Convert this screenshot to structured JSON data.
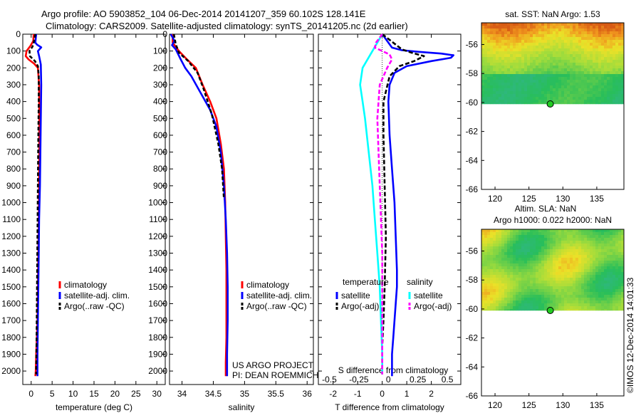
{
  "header": {
    "line1": "Argo profile: AO 5903852_104 06-Dec-2014 20141207_359 60.102S 128.141E",
    "line2": "Climatology: CARS2009. Satellite-adjusted climatology: synTS_20141205.nc (2d earlier)"
  },
  "side_stamp": "©IMOS 12-Dec-2014 14:01:33",
  "project_note": [
    "US ARGO PROJECT",
    "PI: DEAN ROEMMICH"
  ],
  "chart_data": [
    {
      "type": "line",
      "id": "temperature",
      "xlabel": "temperature (deg C)",
      "xlim": [
        -2,
        32
      ],
      "xticks": [
        0,
        5,
        10,
        15,
        20,
        25,
        30
      ],
      "ylim": [
        2080,
        0
      ],
      "yticks": [
        0,
        100,
        200,
        300,
        400,
        500,
        600,
        700,
        800,
        900,
        1000,
        1100,
        1200,
        1300,
        1400,
        1500,
        1600,
        1700,
        1800,
        1900,
        2000
      ],
      "legend": [
        "climatology",
        "satellite-adj. clim.",
        "Argo(..raw -QC)"
      ],
      "series": [
        {
          "name": "climatology",
          "color": "#ff0000",
          "dash": "",
          "x": [
            0.6,
            0.5,
            -0.2,
            -1.1,
            -1.3,
            -0.6,
            0.7,
            1.6,
            1.9,
            1.95,
            1.95,
            1.9,
            1.8,
            1.7,
            1.6,
            1.5,
            1.35,
            1.2,
            1.1,
            1.0
          ],
          "y": [
            0,
            40,
            70,
            100,
            130,
            150,
            175,
            200,
            300,
            500,
            700,
            900,
            1100,
            1300,
            1500,
            1700,
            1800,
            1900,
            2000,
            2030
          ]
        },
        {
          "name": "satellite-adj. clim.",
          "color": "#0000ff",
          "dash": "",
          "x": [
            1.2,
            1.0,
            1.4,
            2.4,
            1.6,
            1.9,
            2.3,
            2.4,
            2.3,
            2.2,
            2.1,
            1.9,
            1.8,
            1.7,
            1.6,
            1.5,
            1.5
          ],
          "y": [
            0,
            50,
            62,
            78,
            100,
            130,
            180,
            300,
            500,
            700,
            900,
            1100,
            1300,
            1500,
            1700,
            1900,
            2030
          ]
        },
        {
          "name": "Argo(..raw -QC)",
          "color": "#000000",
          "dash": "5,3",
          "x": [
            1.0,
            0.6,
            0.3,
            -0.4,
            -0.3,
            0.9,
            1.6,
            1.8,
            1.8,
            1.7,
            1.6,
            1.5,
            1.4,
            1.3,
            1.2,
            1.2
          ],
          "y": [
            0,
            50,
            75,
            100,
            130,
            160,
            190,
            250,
            400,
            600,
            900,
            1200,
            1500,
            1800,
            2000,
            2020
          ]
        }
      ]
    },
    {
      "type": "line",
      "id": "salinity",
      "xlabel": "salinity",
      "xlim": [
        33.8,
        36.1
      ],
      "xticks": [
        34,
        34.5,
        35,
        35.5,
        36
      ],
      "ylim": [
        2080,
        0
      ],
      "legend": [
        "climatology",
        "satellite-adj. clim.",
        "Argo(..raw -QC)"
      ],
      "series": [
        {
          "name": "climatology",
          "color": "#ff0000",
          "dash": "",
          "x": [
            33.85,
            33.85,
            33.95,
            34.08,
            34.22,
            34.33,
            34.45,
            34.55,
            34.62,
            34.67,
            34.69,
            34.7,
            34.71,
            34.71,
            34.71,
            34.7,
            34.7
          ],
          "y": [
            0,
            50,
            100,
            150,
            200,
            300,
            400,
            500,
            650,
            800,
            1000,
            1200,
            1400,
            1600,
            1800,
            1950,
            2030
          ]
        },
        {
          "name": "satellite-adj. clim.",
          "color": "#0000ff",
          "dash": "",
          "x": [
            33.82,
            33.88,
            33.84,
            33.9,
            33.98,
            34.05,
            34.15,
            34.3,
            34.45,
            34.55,
            34.62,
            34.67,
            34.7,
            34.72,
            34.73,
            34.73,
            34.72,
            34.72
          ],
          "y": [
            0,
            40,
            65,
            90,
            150,
            200,
            250,
            350,
            450,
            550,
            700,
            900,
            1100,
            1300,
            1500,
            1700,
            1900,
            2030
          ]
        },
        {
          "name": "Argo(..raw -QC)",
          "color": "#000000",
          "dash": "5,3",
          "x": [
            33.87,
            33.9,
            33.95,
            34.1,
            34.25,
            34.35,
            34.48,
            34.58,
            34.64,
            34.67
          ],
          "y": [
            0,
            60,
            110,
            160,
            230,
            330,
            480,
            650,
            800,
            980
          ]
        }
      ]
    },
    {
      "type": "line",
      "id": "difference",
      "xlabel": "T difference from climatology",
      "xlabel_top": "S difference from climatology",
      "xlim": [
        -2.6,
        3.2
      ],
      "xticks": [
        -2,
        -1,
        0,
        1,
        2
      ],
      "xticks_top": [
        "-0.5",
        "-0.25",
        "0",
        "0.25",
        "0.5"
      ],
      "ylim": [
        2080,
        0
      ],
      "legend_titles": [
        "temperature",
        "salinity"
      ],
      "legend": [
        "satellite",
        "Argo(-adj)",
        "satellite",
        "Argo(-adj)"
      ],
      "series": [
        {
          "name": "satellite",
          "group": "temperature",
          "color": "#0000ff",
          "dash": "",
          "x": [
            0,
            0.4,
            0.8,
            1.5,
            2.4,
            2.9,
            2.8,
            2.0,
            1.0,
            0.5,
            0.3,
            0.25,
            0.3,
            0.4,
            0.5,
            0.55,
            0.6,
            0.6,
            0.55,
            0.5,
            0.45,
            0.4,
            0.4
          ],
          "y": [
            0,
            80,
            95,
            105,
            115,
            125,
            140,
            160,
            190,
            230,
            300,
            400,
            600,
            800,
            1000,
            1200,
            1400,
            1500,
            1600,
            1700,
            1800,
            1900,
            2030
          ]
        },
        {
          "name": "Argo(-adj)",
          "group": "temperature",
          "color": "#000000",
          "dash": "6,3",
          "x": [
            0,
            0.8,
            1.2,
            1.7,
            1.3,
            0.7,
            0.3,
            0.05,
            0.05,
            0.1,
            0.15,
            0.1,
            0.05,
            0.0,
            0.0,
            0.0
          ],
          "y": [
            0,
            90,
            110,
            130,
            160,
            190,
            250,
            400,
            600,
            900,
            1200,
            1500,
            1700,
            1850,
            1950,
            2020
          ]
        },
        {
          "name": "satellite",
          "group": "salinity",
          "color": "#00ffff",
          "dash": "",
          "x": [
            0,
            -0.4,
            -0.8,
            -0.9,
            -0.8,
            -0.7,
            -0.55,
            -0.4,
            -0.3,
            -0.2,
            -0.1,
            -0.05,
            0.0,
            0.0
          ],
          "y": [
            0,
            100,
            200,
            300,
            400,
            500,
            700,
            900,
            1100,
            1300,
            1500,
            1700,
            1900,
            2020
          ]
        },
        {
          "name": "Argo(-adj)",
          "group": "salinity",
          "color": "#ff00ff",
          "dash": "6,3",
          "x": [
            0,
            -0.25,
            -0.3,
            0.3,
            0.4,
            0.2,
            -0.1,
            -0.2,
            -0.1,
            0.0,
            0.0,
            0.0
          ],
          "y": [
            0,
            50,
            80,
            120,
            150,
            200,
            300,
            500,
            900,
            1300,
            1700,
            2020
          ]
        }
      ]
    },
    {
      "type": "heatmap",
      "id": "sst-map",
      "title": "sat. SST: NaN Argo: 1.53",
      "xlim": [
        118,
        139
      ],
      "ylim": [
        -66,
        -54.5
      ],
      "xticks": [
        120,
        125,
        130,
        135
      ],
      "yticks": [
        -56,
        -58,
        -60,
        -62,
        -64,
        -66
      ],
      "marker": {
        "lon": 128.141,
        "lat": -60.102
      }
    },
    {
      "type": "heatmap",
      "id": "sla-map",
      "title": "Altim. SLA: NaN",
      "subtitle": "Argo h1000: 0.022 h2000: NaN",
      "xlim": [
        118,
        139
      ],
      "ylim": [
        -66,
        -54.5
      ],
      "xticks": [
        120,
        125,
        130,
        135
      ],
      "yticks": [
        -56,
        -58,
        -60,
        -62,
        -64,
        -66
      ],
      "marker": {
        "lon": 128.141,
        "lat": -60.102
      }
    }
  ]
}
